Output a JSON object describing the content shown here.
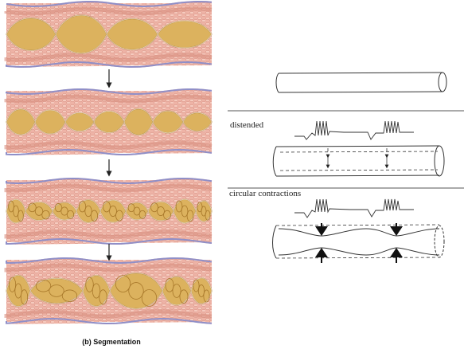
{
  "left_panel": {
    "caption": "(b) Segmentation",
    "stages": [
      {
        "id": "stage-1",
        "pattern": "few-large-segments"
      },
      {
        "id": "stage-2",
        "pattern": "many-small-segments"
      },
      {
        "id": "stage-3",
        "pattern": "irregular-small-segments"
      },
      {
        "id": "stage-4",
        "pattern": "mixed-large-segments"
      }
    ]
  },
  "right_panel": {
    "label_distended": "distended",
    "label_circular": "circular contractions"
  },
  "colors": {
    "wall_pink": "#eeb3a6",
    "wall_dark": "#d98f80",
    "chyme": "#dcb25e",
    "chyme_dark": "#a8782a",
    "serosa_blue": "#8f8fc8",
    "line": "#333333"
  }
}
